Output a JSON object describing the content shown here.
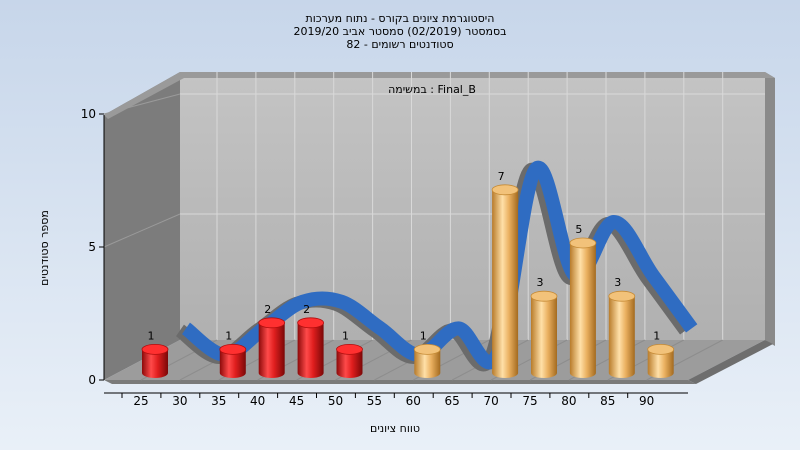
{
  "chart_data": {
    "type": "bar",
    "title_lines": [
      "היסטוגרמת ציונים בקורס - נתוח מערכות",
      "בסמסטר  (02/2019)  סמסטר אביב 2019/20",
      "סטודנטים רשומים - 82"
    ],
    "annotation": "במשימה : Final_B",
    "xlabel": "טווח ציונים",
    "ylabel": "מספר סטודנטים",
    "x_ticks": [
      "25",
      "30",
      "35",
      "40",
      "45",
      "50",
      "55",
      "60",
      "65",
      "70",
      "75",
      "80",
      "85",
      "90"
    ],
    "y_ticks": [
      "0",
      "5",
      "10"
    ],
    "ylim": [
      0,
      10
    ],
    "bars": [
      {
        "x": 25,
        "value": 1
      },
      {
        "x": 35,
        "value": 1
      },
      {
        "x": 40,
        "value": 2
      },
      {
        "x": 45,
        "value": 2
      },
      {
        "x": 50,
        "value": 1
      },
      {
        "x": 60,
        "value": 1
      },
      {
        "x": 70,
        "value": 7
      },
      {
        "x": 75,
        "value": 3
      },
      {
        "x": 80,
        "value": 5
      },
      {
        "x": 85,
        "value": 3
      },
      {
        "x": 90,
        "value": 1
      }
    ],
    "pass_threshold": 55,
    "colors": {
      "fail": "#dd1b1b",
      "pass": "#e9ac57",
      "ribbon": "#2f6cc2",
      "ribbon_shadow": "#6b6b6b",
      "back_wall": "#b9b9b9",
      "side_wall": "#7c7c7c",
      "floor": "#9c9c9c",
      "background": "#e2ebf5"
    },
    "grid": true,
    "style": "3d"
  }
}
